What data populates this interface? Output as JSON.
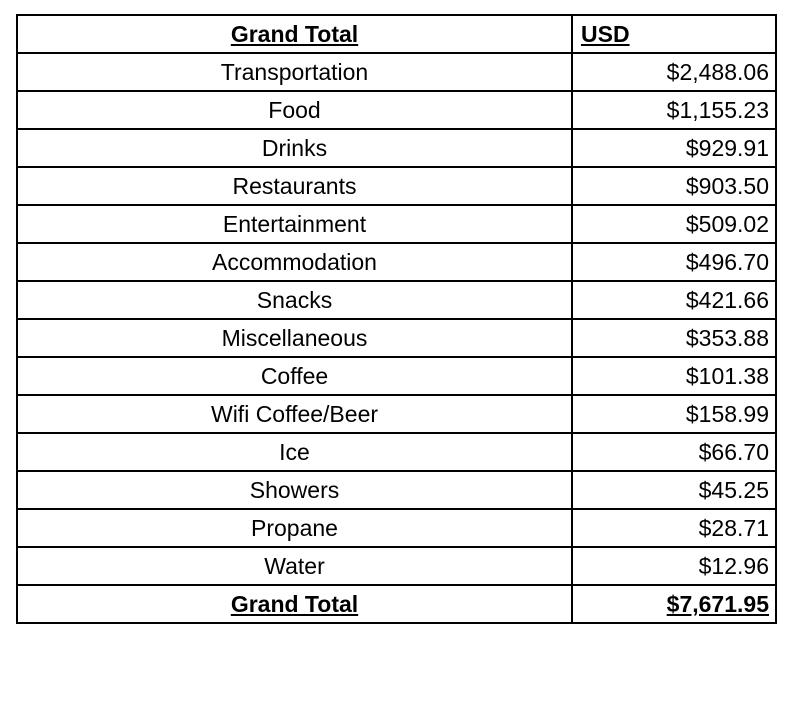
{
  "header": {
    "category": "Grand Total",
    "currency": "USD"
  },
  "rows": [
    {
      "category": "Transportation",
      "amount": "$2,488.06"
    },
    {
      "category": "Food",
      "amount": "$1,155.23"
    },
    {
      "category": "Drinks",
      "amount": "$929.91"
    },
    {
      "category": "Restaurants",
      "amount": "$903.50"
    },
    {
      "category": "Entertainment",
      "amount": "$509.02"
    },
    {
      "category": "Accommodation",
      "amount": "$496.70"
    },
    {
      "category": "Snacks",
      "amount": "$421.66"
    },
    {
      "category": "Miscellaneous",
      "amount": "$353.88"
    },
    {
      "category": "Coffee",
      "amount": "$101.38"
    },
    {
      "category": "Wifi Coffee/Beer",
      "amount": "$158.99"
    },
    {
      "category": "Ice",
      "amount": "$66.70"
    },
    {
      "category": "Showers",
      "amount": "$45.25"
    },
    {
      "category": "Propane",
      "amount": "$28.71"
    },
    {
      "category": "Water",
      "amount": "$12.96"
    }
  ],
  "total": {
    "label": "Grand Total",
    "amount": "$7,671.95"
  }
}
